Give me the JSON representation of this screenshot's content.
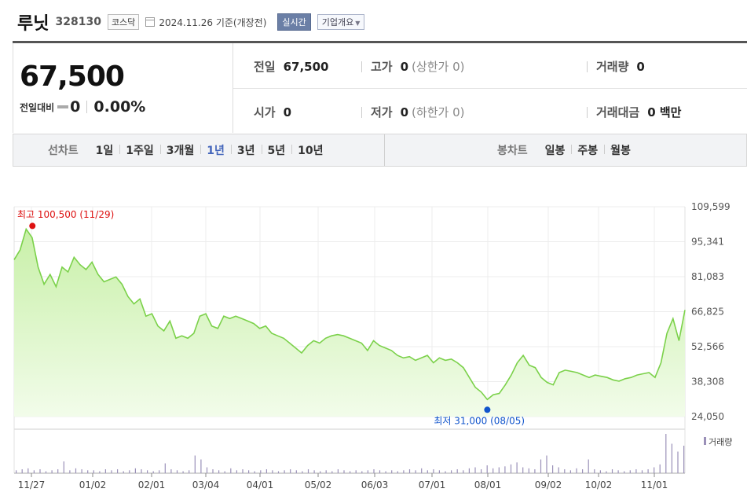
{
  "header": {
    "name": "루닛",
    "code": "328130",
    "market": "코스닥",
    "date": "2024.11.26 기준(개장전)",
    "realtime_label": "실시간",
    "corp_info_label": "기업개요"
  },
  "quote": {
    "price": "67,500",
    "change_label": "전일대비",
    "change_value": "0",
    "change_pct": "0.00%"
  },
  "stats": {
    "prev_close_label": "전일",
    "prev_close": "67,500",
    "high_label": "고가",
    "high": "0",
    "upper_limit": "(상한가 0)",
    "volume_label": "거래량",
    "volume": "0",
    "open_label": "시가",
    "open": "0",
    "low_label": "저가",
    "low": "0",
    "lower_limit": "(하한가 0)",
    "amount_label": "거래대금",
    "amount": "0 백만"
  },
  "tabs": {
    "line_label": "선차트",
    "line_items": [
      "1일",
      "1주일",
      "3개월",
      "1년",
      "3년",
      "5년",
      "10년"
    ],
    "active_index": 3,
    "candle_label": "봉차트",
    "candle_items": [
      "일봉",
      "주봉",
      "월봉"
    ]
  },
  "colors": {
    "line": "#7bd14a",
    "fill_top": "#c8f0a8",
    "fill_bottom": "#f2fcea",
    "high_marker": "#dd1111",
    "low_marker": "#1155cc",
    "volume_bar": "#9a90b8"
  },
  "chart_data": {
    "type": "area",
    "y_ticks": [
      "109,599",
      "95,341",
      "81,083",
      "66,825",
      "52,566",
      "38,308",
      "24,050"
    ],
    "ylim": [
      24050,
      109599
    ],
    "x_labels": [
      "11/27",
      "01/02",
      "02/01",
      "03/04",
      "04/01",
      "05/02",
      "06/03",
      "07/01",
      "08/01",
      "09/02",
      "10/02",
      "11/01"
    ],
    "high_annotation": "최고 100,500 (11/29)",
    "low_annotation": "최저 31,000 (08/05)",
    "volume_legend": "거래량",
    "series": [
      {
        "values": [
          88000,
          92000,
          100500,
          97000,
          85000,
          78000,
          82000,
          77000,
          85000,
          83000,
          89000,
          86000,
          84000,
          87000,
          82000,
          79000,
          80000,
          81000,
          78000,
          73000,
          70000,
          72000,
          65000,
          66000,
          61000,
          59000,
          63000,
          56000,
          57000,
          56000,
          58000,
          65000,
          66000,
          61000,
          60000,
          65000,
          64000,
          65000,
          64000,
          63000,
          62000,
          60000,
          61000,
          58000,
          57000,
          56000,
          54000,
          52000,
          50000,
          53000,
          55000,
          54000,
          56000,
          57000,
          57500,
          57000,
          56000,
          55000,
          54000,
          51000,
          55000,
          53000,
          52000,
          51000,
          49000,
          48000,
          48500,
          47000,
          48000,
          49000,
          46000,
          48000,
          47000,
          47500,
          46000,
          44000,
          40000,
          36000,
          34000,
          31000,
          33000,
          33500,
          37000,
          41000,
          46000,
          49000,
          45000,
          44000,
          40000,
          38000,
          37000,
          42000,
          43000,
          42500,
          42000,
          41000,
          40000,
          41000,
          40500,
          40000,
          39000,
          38500,
          39500,
          40000,
          41000,
          41500,
          42000,
          40000,
          46000,
          58000,
          64000,
          55000,
          67500
        ]
      }
    ],
    "volume": [
      3,
      4,
      5,
      3,
      4,
      2,
      3,
      4,
      12,
      3,
      5,
      4,
      3,
      3,
      2,
      4,
      3,
      4,
      2,
      3,
      5,
      4,
      3,
      2,
      3,
      10,
      4,
      3,
      2,
      3,
      18,
      14,
      6,
      4,
      3,
      2,
      5,
      3,
      4,
      3,
      2,
      3,
      4,
      3,
      2,
      3,
      4,
      3,
      2,
      4,
      3,
      2,
      3,
      2,
      4,
      3,
      2,
      3,
      2,
      3,
      4,
      3,
      2,
      3,
      2,
      3,
      4,
      3,
      5,
      3,
      4,
      3,
      2,
      3,
      4,
      3,
      5,
      6,
      4,
      8,
      5,
      6,
      7,
      9,
      11,
      6,
      5,
      4,
      14,
      18,
      8,
      6,
      4,
      3,
      5,
      4,
      14,
      4,
      3,
      2,
      4,
      3,
      2,
      3,
      4,
      3,
      4,
      6,
      9,
      40,
      30,
      22,
      28
    ]
  }
}
